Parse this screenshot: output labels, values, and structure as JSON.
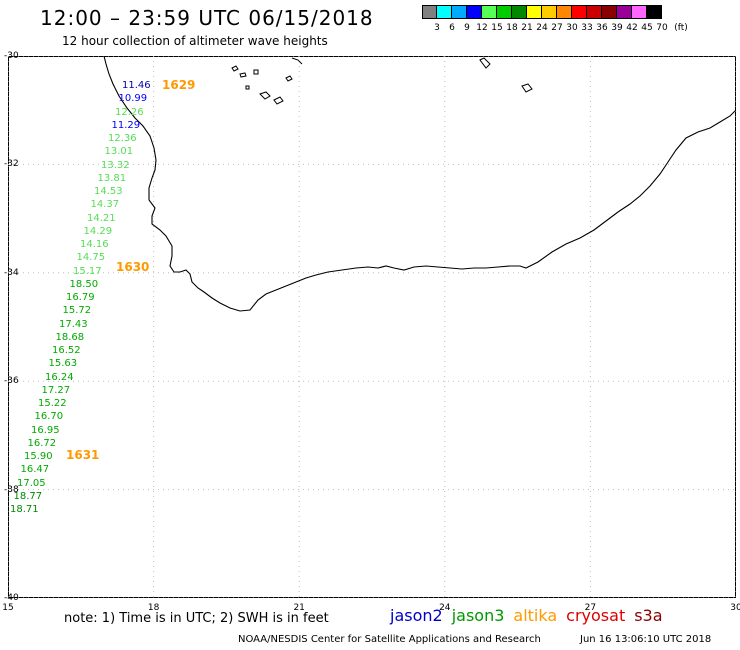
{
  "header": {
    "title": "12:00 – 23:59 UTC 06/15/2018",
    "subtitle": "12 hour collection of altimeter wave heights"
  },
  "color_scale": {
    "colors": [
      "#808080",
      "#00ffff",
      "#00aaff",
      "#0000ff",
      "#55ff55",
      "#00cc00",
      "#008800",
      "#ffff00",
      "#ffcc00",
      "#ff8800",
      "#ff0000",
      "#cc0000",
      "#880000",
      "#990099",
      "#ff66ff",
      "#000000"
    ],
    "labels": [
      "3",
      "6",
      "9",
      "12",
      "15",
      "18",
      "21",
      "24",
      "27",
      "30",
      "33",
      "36",
      "39",
      "42",
      "45",
      "70",
      "(ft)"
    ]
  },
  "axes": {
    "lat_labels": [
      "-30",
      "-32",
      "-34",
      "-36",
      "-38",
      "-40"
    ],
    "lon_labels": [
      "15",
      "18",
      "21",
      "24",
      "27",
      "30"
    ]
  },
  "map_data": {
    "lon_range": [
      15,
      30
    ],
    "lat_range": [
      -40,
      -30
    ],
    "grid": true,
    "region": "South Africa coast"
  },
  "observations": [
    {
      "value": "11.46",
      "color": "#0000aa"
    },
    {
      "value": "10.99",
      "color": "#0000ff"
    },
    {
      "value": "12.26",
      "color": "#55dd55"
    },
    {
      "value": "11.29",
      "color": "#0000ff"
    },
    {
      "value": "12.36",
      "color": "#55dd55"
    },
    {
      "value": "13.01",
      "color": "#55dd55"
    },
    {
      "value": "13.32",
      "color": "#55dd55"
    },
    {
      "value": "13.81",
      "color": "#55dd55"
    },
    {
      "value": "14.53",
      "color": "#55dd55"
    },
    {
      "value": "14.37",
      "color": "#55dd55"
    },
    {
      "value": "14.21",
      "color": "#55dd55"
    },
    {
      "value": "14.29",
      "color": "#55dd55"
    },
    {
      "value": "14.16",
      "color": "#55dd55"
    },
    {
      "value": "14.75",
      "color": "#55dd55"
    },
    {
      "value": "15.17",
      "color": "#55dd55"
    },
    {
      "value": "18.50",
      "color": "#00aa00"
    },
    {
      "value": "16.79",
      "color": "#00aa00"
    },
    {
      "value": "15.72",
      "color": "#00aa00"
    },
    {
      "value": "17.43",
      "color": "#00aa00"
    },
    {
      "value": "18.68",
      "color": "#00aa00"
    },
    {
      "value": "16.52",
      "color": "#00aa00"
    },
    {
      "value": "15.63",
      "color": "#00aa00"
    },
    {
      "value": "16.24",
      "color": "#00aa00"
    },
    {
      "value": "17.27",
      "color": "#00aa00"
    },
    {
      "value": "15.22",
      "color": "#00aa00"
    },
    {
      "value": "16.70",
      "color": "#00aa00"
    },
    {
      "value": "16.95",
      "color": "#00aa00"
    },
    {
      "value": "16.72",
      "color": "#00aa00"
    },
    {
      "value": "15.90",
      "color": "#00aa00"
    },
    {
      "value": "16.47",
      "color": "#00aa00"
    },
    {
      "value": "17.05",
      "color": "#00aa00"
    },
    {
      "value": "18.77",
      "color": "#008800"
    },
    {
      "value": "18.71",
      "color": "#008800"
    }
  ],
  "pass_times": [
    "1629",
    "1630",
    "1631"
  ],
  "footer": {
    "note": "note: 1) Time is in UTC; 2) SWH is in feet",
    "legend": [
      {
        "label": "jason2",
        "color": "#0000cc"
      },
      {
        "label": "jason3",
        "color": "#009900"
      },
      {
        "label": "altika",
        "color": "#ff9900"
      },
      {
        "label": "cryosat",
        "color": "#dd0000"
      },
      {
        "label": "s3a",
        "color": "#880000"
      }
    ],
    "credit": "NOAA/NESDIS Center for Satellite Applications and Research",
    "timestamp": "Jun 16 13:06:10 UTC 2018"
  }
}
